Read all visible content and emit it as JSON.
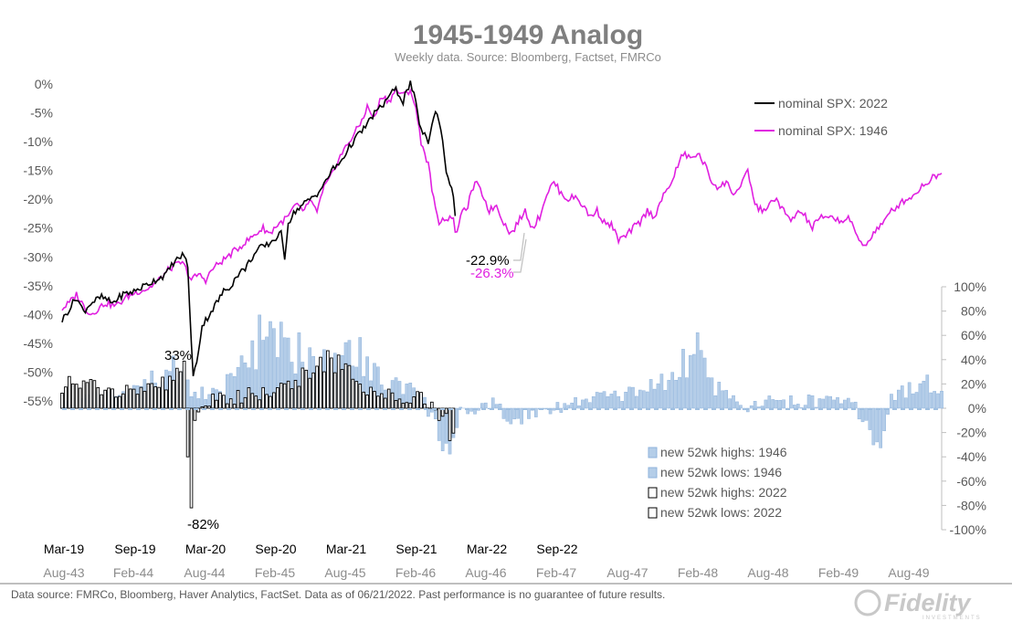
{
  "chart_data": {
    "type": "line",
    "title": "1945-1949 Analog",
    "subtitle": "Weekly data.  Source: Bloomberg, Factset, FMRCo",
    "footer": "Data source: FMRCo, Bloomberg, Haver Analytics, FactSet. Data as of 06/21/2022. Past performance is no guarantee of future results.",
    "logo_text": "Fidelity",
    "logo_subtext": "INVESTMENTS",
    "left_axis": {
      "ylim": [
        -55,
        0
      ],
      "ticks": [
        0,
        -5,
        -10,
        -15,
        -20,
        -25,
        -30,
        -35,
        -40,
        -45,
        -50,
        -55
      ],
      "tick_labels": [
        "0%",
        "-5%",
        "-10%",
        "-15%",
        "-20%",
        "-25%",
        "-30%",
        "-35%",
        "-40%",
        "-45%",
        "-50%",
        "-55%"
      ]
    },
    "right_axis": {
      "ylim": [
        -100,
        100
      ],
      "ticks": [
        100,
        80,
        60,
        40,
        20,
        0,
        -20,
        -40,
        -60,
        -80,
        -100
      ],
      "tick_labels": [
        "100%",
        "80%",
        "60%",
        "40%",
        "20%",
        "0%",
        "-20%",
        "-40%",
        "-60%",
        "-80%",
        "-100%"
      ]
    },
    "x_axis_2022": [
      "Mar-19",
      "Sep-19",
      "Mar-20",
      "Sep-20",
      "Mar-21",
      "Sep-21",
      "Mar-22",
      "Sep-22"
    ],
    "x_axis_1946": [
      "Aug-43",
      "Feb-44",
      "Aug-44",
      "Feb-45",
      "Aug-45",
      "Feb-46",
      "Aug-46",
      "Feb-47",
      "Aug-47",
      "Feb-48",
      "Aug-48",
      "Feb-49",
      "Aug-49"
    ],
    "colors": {
      "spx2022": "#000000",
      "spx1946": "#e020e0",
      "bars1946": "#b4cde8",
      "bars1946_edge": "#8fb3dc",
      "bars2022_fill": "#ffffff",
      "bars2022_edge": "#000000"
    },
    "series": [
      {
        "name": "nominal SPX: 2022",
        "axis": "left",
        "color": "#000000",
        "points": [
          [
            0,
            -41
          ],
          [
            4,
            -39
          ],
          [
            8,
            -37
          ],
          [
            12,
            -39.5
          ],
          [
            16,
            -38
          ],
          [
            22,
            -37
          ],
          [
            28,
            -38
          ],
          [
            34,
            -36.5
          ],
          [
            40,
            -36
          ],
          [
            46,
            -35
          ],
          [
            52,
            -34
          ],
          [
            58,
            -33
          ],
          [
            62,
            -31
          ],
          [
            66,
            -30
          ],
          [
            68,
            -29.5
          ],
          [
            70,
            -32
          ],
          [
            71,
            -38
          ],
          [
            72,
            -45
          ],
          [
            73,
            -51
          ],
          [
            75,
            -48
          ],
          [
            78,
            -42
          ],
          [
            82,
            -40
          ],
          [
            86,
            -38
          ],
          [
            90,
            -36
          ],
          [
            94,
            -35
          ],
          [
            98,
            -33
          ],
          [
            102,
            -32
          ],
          [
            106,
            -30
          ],
          [
            110,
            -28.5
          ],
          [
            114,
            -28
          ],
          [
            118,
            -27
          ],
          [
            122,
            -26
          ],
          [
            124,
            -30
          ],
          [
            126,
            -24
          ],
          [
            130,
            -22
          ],
          [
            134,
            -21
          ],
          [
            138,
            -20
          ],
          [
            142,
            -19
          ],
          [
            146,
            -17.5
          ],
          [
            150,
            -15
          ],
          [
            154,
            -14
          ],
          [
            158,
            -12
          ],
          [
            162,
            -10
          ],
          [
            166,
            -8.5
          ],
          [
            170,
            -7
          ],
          [
            174,
            -5
          ],
          [
            178,
            -4
          ],
          [
            182,
            -2
          ],
          [
            186,
            -1
          ],
          [
            190,
            -3
          ],
          [
            192,
            -1
          ],
          [
            194,
            0
          ],
          [
            196,
            -2
          ],
          [
            198,
            -5
          ],
          [
            200,
            -8
          ],
          [
            202,
            -9
          ],
          [
            204,
            -10
          ],
          [
            206,
            -7
          ],
          [
            208,
            -5
          ],
          [
            210,
            -6
          ],
          [
            212,
            -10
          ],
          [
            214,
            -15
          ],
          [
            216,
            -17
          ],
          [
            218,
            -20
          ],
          [
            219,
            -22.9
          ]
        ]
      },
      {
        "name": "nominal SPX: 1946",
        "axis": "left",
        "color": "#e020e0",
        "points": [
          [
            0,
            -39
          ],
          [
            4,
            -38
          ],
          [
            8,
            -36.5
          ],
          [
            12,
            -38.5
          ],
          [
            16,
            -40
          ],
          [
            20,
            -39
          ],
          [
            24,
            -38
          ],
          [
            30,
            -38.5
          ],
          [
            36,
            -37
          ],
          [
            42,
            -36
          ],
          [
            48,
            -35.5
          ],
          [
            54,
            -34
          ],
          [
            60,
            -32
          ],
          [
            66,
            -31
          ],
          [
            68,
            -31.5
          ],
          [
            72,
            -34
          ],
          [
            76,
            -33
          ],
          [
            80,
            -34
          ],
          [
            84,
            -32
          ],
          [
            88,
            -31
          ],
          [
            92,
            -30
          ],
          [
            96,
            -29
          ],
          [
            100,
            -28
          ],
          [
            104,
            -27
          ],
          [
            108,
            -26
          ],
          [
            112,
            -25
          ],
          [
            116,
            -26
          ],
          [
            118,
            -25
          ],
          [
            122,
            -24
          ],
          [
            126,
            -23
          ],
          [
            130,
            -21
          ],
          [
            134,
            -22
          ],
          [
            138,
            -20.5
          ],
          [
            142,
            -22
          ],
          [
            146,
            -18
          ],
          [
            150,
            -16
          ],
          [
            154,
            -13
          ],
          [
            158,
            -11
          ],
          [
            162,
            -9
          ],
          [
            166,
            -7
          ],
          [
            170,
            -4
          ],
          [
            174,
            -6
          ],
          [
            178,
            -2
          ],
          [
            182,
            -3
          ],
          [
            186,
            -1
          ],
          [
            190,
            -2
          ],
          [
            194,
            -1
          ],
          [
            196,
            -3
          ],
          [
            198,
            -6
          ],
          [
            200,
            -10
          ],
          [
            204,
            -14
          ],
          [
            206,
            -18
          ],
          [
            208,
            -22
          ],
          [
            210,
            -24
          ],
          [
            212,
            -23
          ],
          [
            214,
            -24
          ],
          [
            216,
            -22.5
          ],
          [
            218,
            -23.5
          ],
          [
            219,
            -26.3
          ],
          [
            222,
            -23
          ],
          [
            226,
            -21
          ],
          [
            230,
            -17
          ],
          [
            234,
            -19
          ],
          [
            238,
            -22
          ],
          [
            242,
            -21
          ],
          [
            246,
            -24
          ],
          [
            250,
            -26
          ],
          [
            254,
            -24
          ],
          [
            258,
            -22
          ],
          [
            262,
            -25
          ],
          [
            266,
            -23
          ],
          [
            270,
            -19
          ],
          [
            274,
            -17
          ],
          [
            278,
            -19
          ],
          [
            282,
            -20
          ],
          [
            286,
            -19.5
          ],
          [
            290,
            -21
          ],
          [
            294,
            -23
          ],
          [
            298,
            -22
          ],
          [
            302,
            -24
          ],
          [
            306,
            -24.5
          ],
          [
            310,
            -27
          ],
          [
            314,
            -26.5
          ],
          [
            318,
            -25
          ],
          [
            322,
            -24
          ],
          [
            326,
            -22
          ],
          [
            330,
            -23
          ],
          [
            334,
            -20
          ],
          [
            338,
            -18
          ],
          [
            342,
            -15
          ],
          [
            346,
            -12
          ],
          [
            350,
            -13
          ],
          [
            354,
            -12
          ],
          [
            358,
            -14
          ],
          [
            362,
            -17
          ],
          [
            366,
            -18
          ],
          [
            370,
            -17
          ],
          [
            374,
            -19
          ],
          [
            378,
            -18
          ],
          [
            382,
            -15
          ],
          [
            386,
            -21
          ],
          [
            390,
            -22
          ],
          [
            394,
            -21
          ],
          [
            398,
            -20
          ],
          [
            402,
            -22
          ],
          [
            406,
            -24
          ],
          [
            410,
            -22
          ],
          [
            414,
            -23
          ],
          [
            418,
            -25
          ],
          [
            422,
            -23
          ],
          [
            426,
            -23.5
          ],
          [
            430,
            -23
          ],
          [
            434,
            -24
          ],
          [
            438,
            -23
          ],
          [
            442,
            -26
          ],
          [
            446,
            -28
          ],
          [
            450,
            -27
          ],
          [
            454,
            -25
          ],
          [
            458,
            -24
          ],
          [
            462,
            -22
          ],
          [
            466,
            -21
          ],
          [
            470,
            -20
          ],
          [
            474,
            -19.5
          ],
          [
            478,
            -18
          ],
          [
            482,
            -17
          ],
          [
            486,
            -16
          ],
          [
            490,
            -15.5
          ]
        ]
      }
    ],
    "bar_series": [
      {
        "name": "new 52wk highs: 1946",
        "axis": "right"
      },
      {
        "name": "new 52wk lows: 1946",
        "axis": "right"
      },
      {
        "name": "new 52wk highs: 2022",
        "axis": "right"
      },
      {
        "name": "new 52wk lows: 2022",
        "axis": "right"
      }
    ],
    "bars_1946_profile": [
      [
        0,
        5
      ],
      [
        20,
        8
      ],
      [
        40,
        15
      ],
      [
        60,
        30
      ],
      [
        68,
        33
      ],
      [
        72,
        10
      ],
      [
        90,
        15
      ],
      [
        100,
        40
      ],
      [
        110,
        55
      ],
      [
        120,
        50
      ],
      [
        130,
        45
      ],
      [
        140,
        50
      ],
      [
        150,
        45
      ],
      [
        160,
        55
      ],
      [
        170,
        35
      ],
      [
        180,
        20
      ],
      [
        190,
        20
      ],
      [
        200,
        10
      ],
      [
        210,
        -20
      ],
      [
        218,
        -40
      ],
      [
        222,
        -5
      ],
      [
        240,
        3
      ],
      [
        250,
        -10
      ],
      [
        260,
        -5
      ],
      [
        270,
        0
      ],
      [
        290,
        5
      ],
      [
        300,
        12
      ],
      [
        310,
        8
      ],
      [
        320,
        15
      ],
      [
        340,
        25
      ],
      [
        350,
        40
      ],
      [
        356,
        55
      ],
      [
        362,
        20
      ],
      [
        370,
        10
      ],
      [
        380,
        -3
      ],
      [
        390,
        5
      ],
      [
        400,
        4
      ],
      [
        420,
        6
      ],
      [
        440,
        5
      ],
      [
        450,
        -20
      ],
      [
        456,
        -30
      ],
      [
        462,
        10
      ],
      [
        480,
        20
      ],
      [
        490,
        18
      ]
    ],
    "bars_2022_profile": [
      [
        0,
        20
      ],
      [
        30,
        15
      ],
      [
        60,
        20
      ],
      [
        68,
        33
      ],
      [
        70,
        -40
      ],
      [
        72,
        -82
      ],
      [
        74,
        -10
      ],
      [
        80,
        5
      ],
      [
        100,
        10
      ],
      [
        120,
        15
      ],
      [
        130,
        25
      ],
      [
        140,
        35
      ],
      [
        150,
        40
      ],
      [
        160,
        30
      ],
      [
        170,
        15
      ],
      [
        180,
        10
      ],
      [
        190,
        10
      ],
      [
        200,
        10
      ],
      [
        210,
        -5
      ],
      [
        214,
        -10
      ],
      [
        219,
        -40
      ]
    ],
    "x_period_max": 490,
    "annotations": [
      {
        "label": "-22.9%",
        "target": [
          219,
          -22.9
        ],
        "color": "#000000"
      },
      {
        "label": "-26.3%",
        "target": [
          219,
          -26.3
        ],
        "color": "#e020e0"
      },
      {
        "label": "33%",
        "target": [
          68,
          33
        ],
        "color": "#000000"
      },
      {
        "label": "-82%",
        "target": [
          72,
          -82
        ],
        "color": "#000000"
      }
    ],
    "legend_placement": [
      "top-right",
      "bottom-right"
    ]
  }
}
